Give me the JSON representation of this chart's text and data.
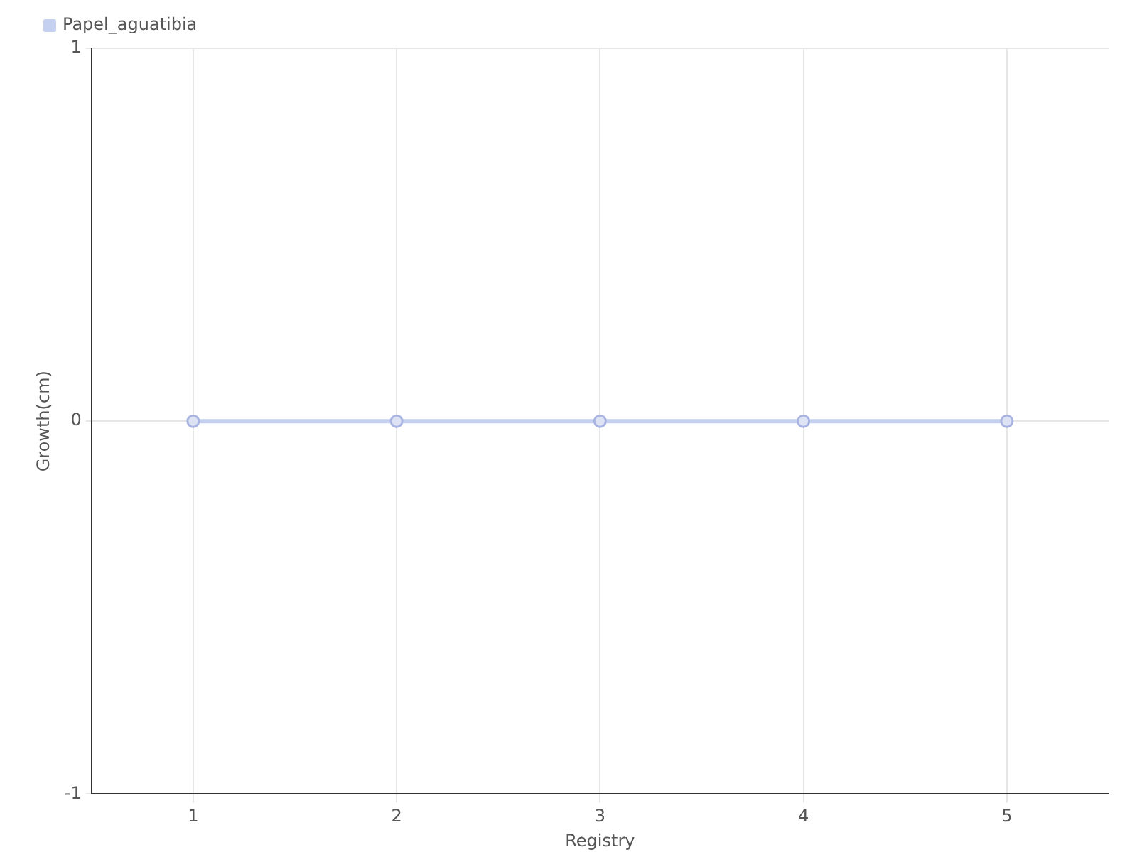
{
  "chart_data": {
    "type": "line",
    "xlabel": "Registry",
    "ylabel": "Growth(cm)",
    "categories": [
      "1",
      "2",
      "3",
      "4",
      "5"
    ],
    "series": [
      {
        "name": "Papel_aguatibia",
        "color": "#c5cfef",
        "values": [
          0,
          0,
          0,
          0,
          0
        ]
      }
    ],
    "ylim": [
      -1,
      1
    ],
    "yticks": [
      -1,
      0,
      1
    ],
    "grid": true,
    "legend": "top left",
    "marker": "circle",
    "line_style": "solid"
  }
}
